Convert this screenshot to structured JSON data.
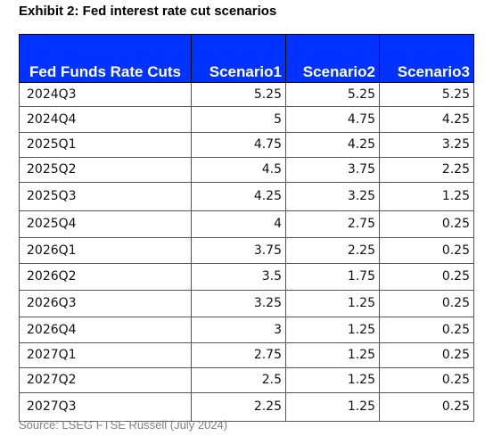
{
  "title": "Exhibit 2: Fed interest rate cut scenarios",
  "table": {
    "headers": [
      "Fed Funds Rate Cuts",
      "Scenario1",
      "Scenario2",
      "Scenario3"
    ],
    "rows": [
      [
        "2024Q3",
        "5.25",
        "5.25",
        "5.25"
      ],
      [
        "2024Q4",
        "5",
        "4.75",
        "4.25"
      ],
      [
        "2025Q1",
        "4.75",
        "4.25",
        "3.25"
      ],
      [
        "2025Q2",
        "4.5",
        "3.75",
        "2.25"
      ],
      [
        "2025Q3",
        "4.25",
        "3.25",
        "1.25"
      ],
      [
        "2025Q4",
        "4",
        "2.75",
        "0.25"
      ],
      [
        "2026Q1",
        "3.75",
        "2.25",
        "0.25"
      ],
      [
        "2026Q2",
        "3.5",
        "1.75",
        "0.25"
      ],
      [
        "2026Q3",
        "3.25",
        "1.25",
        "0.25"
      ],
      [
        "2026Q4",
        "3",
        "1.25",
        "0.25"
      ],
      [
        "2027Q1",
        "2.75",
        "1.25",
        "0.25"
      ],
      [
        "2027Q2",
        "2.5",
        "1.25",
        "0.25"
      ],
      [
        "2027Q3",
        "2.25",
        "1.25",
        "0.25"
      ]
    ]
  },
  "source": "Source: LSEG FTSE Russell (July 2024)",
  "colors": {
    "header_bg": "#0033ff",
    "header_text": "#ffffff",
    "source_text": "#808080"
  }
}
